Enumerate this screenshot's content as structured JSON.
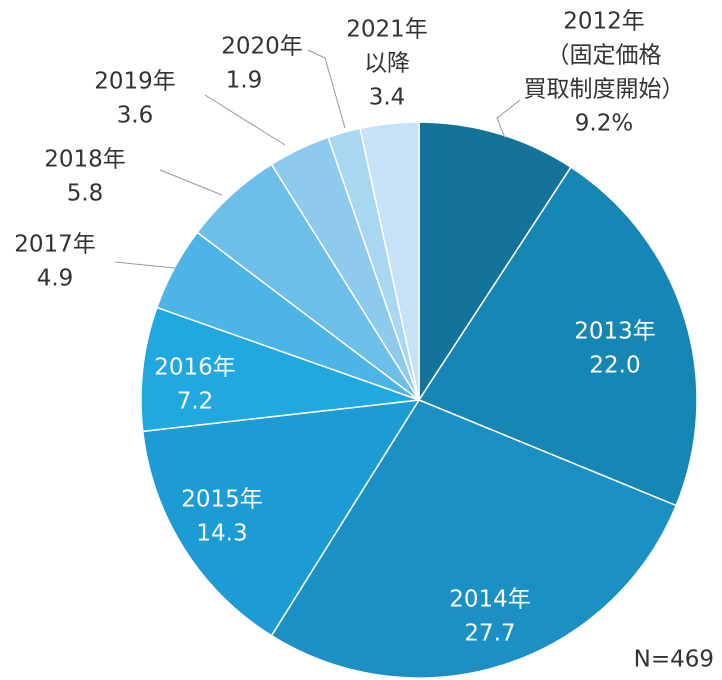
{
  "chart_data": {
    "type": "pie",
    "categories": [
      [
        "2012年",
        "（固定価格",
        "買取制度開始）"
      ],
      [
        "2013年"
      ],
      [
        "2014年"
      ],
      [
        "2015年"
      ],
      [
        "2016年"
      ],
      [
        "2017年"
      ],
      [
        "2018年"
      ],
      [
        "2019年"
      ],
      [
        "2020年"
      ],
      [
        "2021年",
        "以降"
      ]
    ],
    "values": [
      9.2,
      22.0,
      27.7,
      14.3,
      7.2,
      4.9,
      5.8,
      3.6,
      1.9,
      3.4
    ],
    "value_labels": [
      "9.2%",
      "22.0",
      "27.7",
      "14.3",
      "7.2",
      "4.9",
      "5.8",
      "3.6",
      "1.9",
      "3.4"
    ],
    "colors": [
      "#13739a",
      "#1686b5",
      "#1a90c4",
      "#1c9bd5",
      "#21a8e1",
      "#4cb4e7",
      "#6dbfea",
      "#8ecaee",
      "#a9d6f1",
      "#c6e2f6"
    ],
    "annotation": "N=469"
  }
}
